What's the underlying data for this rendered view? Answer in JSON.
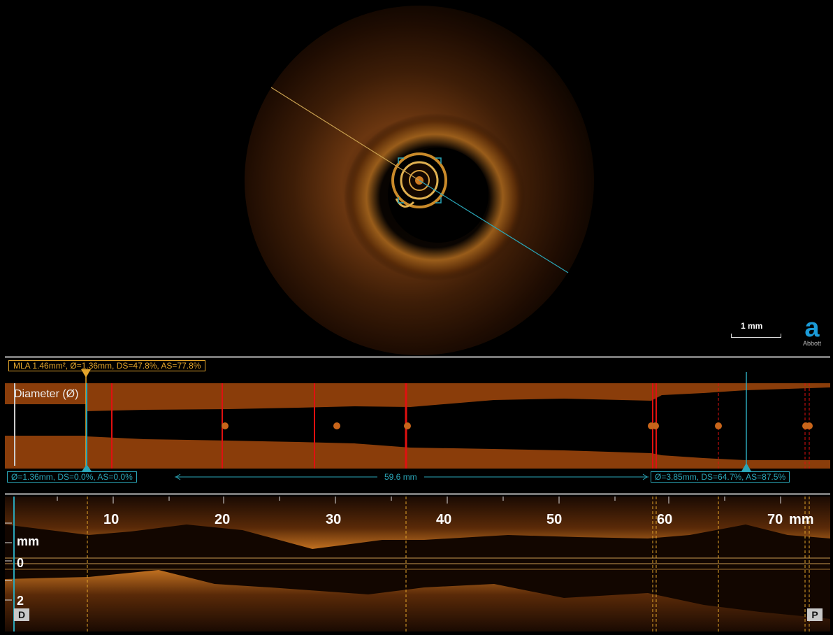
{
  "scale_bar": {
    "label": "1 mm"
  },
  "logo": {
    "mark": "a",
    "text": "Abbott"
  },
  "mla": {
    "label": "MLA 1.46mm², Ø=1.36mm, DS=47.8%, AS=77.8%"
  },
  "diameter_panel": {
    "label": "Diameter (Ø)"
  },
  "left_reference": {
    "label": "Ø=1.36mm, DS=0.0%, AS=0.0%"
  },
  "right_reference": {
    "label": "Ø=3.85mm, DS=64.7%, AS=87.5%"
  },
  "length": {
    "label": "59.6 mm"
  },
  "long_view": {
    "ticks": [
      "10",
      "20",
      "30",
      "40",
      "50",
      "60",
      "70"
    ],
    "unit": "mm",
    "depth_unit": "mm",
    "depth_ticks": [
      "0",
      "2"
    ],
    "distal_button": "D",
    "proximal_button": "P"
  },
  "colors": {
    "lumen_tissue": "#8a3d0a",
    "mla_marker": "#e4a52b",
    "reference": "#2aa6b8",
    "frame_red": "#e01010",
    "logo": "#1b9bd8"
  }
}
